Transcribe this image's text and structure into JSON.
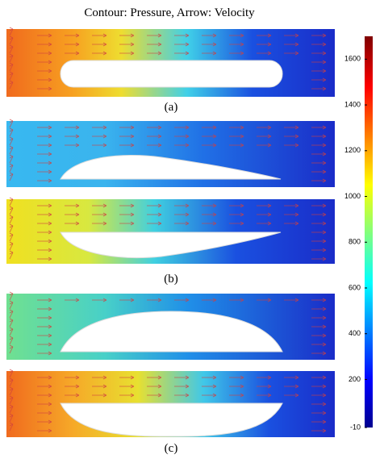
{
  "title": "Contour:  Pressure,  Arrow:  Velocity",
  "panel_labels": [
    "(a)",
    "(b)",
    "(c)"
  ],
  "colorbar": {
    "ylim": [
      -10,
      1700
    ],
    "yticks": [
      -10,
      200,
      400,
      600,
      800,
      1000,
      1200,
      1400,
      1600
    ]
  }
}
